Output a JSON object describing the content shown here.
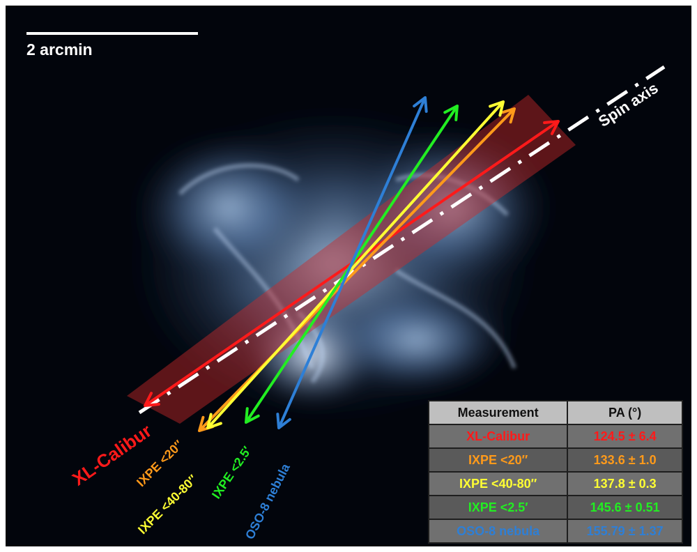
{
  "scale_bar": {
    "label": "2 arcmin"
  },
  "axis": {
    "label": "Spin axis",
    "color": "#ffffff"
  },
  "measurements": [
    {
      "label": "XL-Calibur",
      "pa": "124.5 ± 6.4",
      "color": "#ff1a1a"
    },
    {
      "label": "IXPE <20″",
      "pa": "133.6 ± 1.0",
      "color": "#ff9a1a"
    },
    {
      "label": "IXPE <40-80″",
      "pa": "137.8 ± 0.3",
      "color": "#ffff33"
    },
    {
      "label": "IXPE <2.5′",
      "pa": "145.6 ± 0.51",
      "color": "#22ee22"
    },
    {
      "label": "OSO-8 nebula",
      "pa": "155.79 ± 1.37",
      "color": "#2e7fd6"
    }
  ],
  "table": {
    "col_measurement": "Measurement",
    "col_pa": "PA (°)"
  }
}
